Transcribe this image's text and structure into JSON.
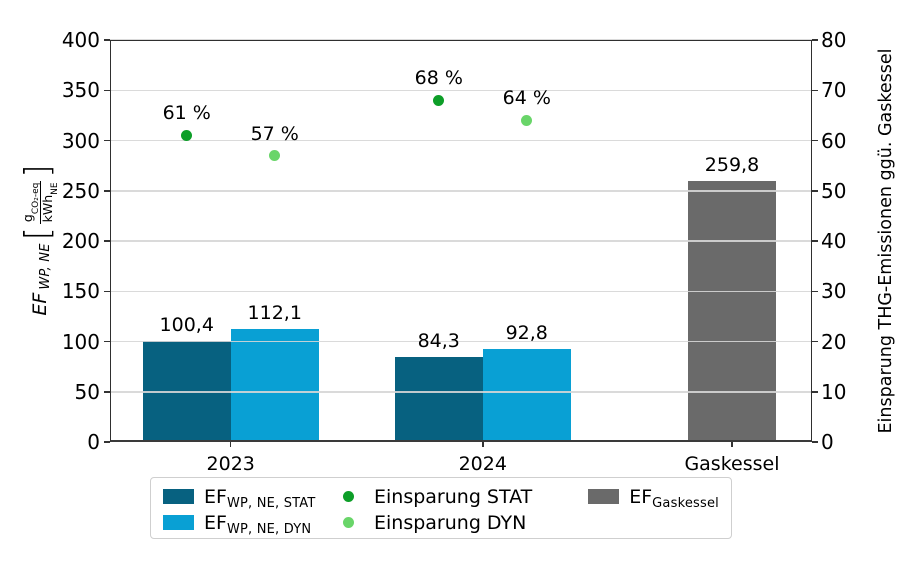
{
  "figure": {
    "left_axis_label": {
      "var": "EF",
      "var_sub": "WP, NE",
      "bracket_open": "[",
      "num": "g",
      "num_sub": "CO₂-eq",
      "den": "kWh",
      "den_sub": "NE",
      "bracket_close": "]"
    },
    "right_axis_label": "Einsparung THG-Emissionen ggü. Gaskessel"
  },
  "chart_data": {
    "type": "bar",
    "categories": [
      "2023",
      "2024",
      "Gaskessel"
    ],
    "left_axis": {
      "min": 0,
      "max": 400,
      "ticks": [
        0,
        50,
        100,
        150,
        200,
        250,
        300,
        350,
        400
      ]
    },
    "right_axis": {
      "min": 0,
      "max": 80,
      "ticks": [
        0,
        10,
        20,
        30,
        40,
        50,
        60,
        70,
        80
      ]
    },
    "grid": "horizontal",
    "legend_position": "bottom",
    "series": [
      {
        "name": "EF WP,NE,STAT",
        "type": "bar",
        "axis": "left",
        "color": "#076180",
        "values": [
          100.4,
          84.3,
          null
        ],
        "value_labels": [
          "100,4",
          "84,3",
          null
        ]
      },
      {
        "name": "EF WP,NE,DYN",
        "type": "bar",
        "axis": "left",
        "color": "#09a0d4",
        "values": [
          112.1,
          92.8,
          null
        ],
        "value_labels": [
          "112,1",
          "92,8",
          null
        ]
      },
      {
        "name": "EF Gaskessel",
        "type": "bar",
        "axis": "left",
        "color": "#6a6a6a",
        "values": [
          null,
          null,
          259.8
        ],
        "value_labels": [
          null,
          null,
          "259,8"
        ]
      },
      {
        "name": "Einsparung STAT",
        "type": "scatter",
        "axis": "right",
        "color": "#0d9e28",
        "values": [
          61,
          68,
          null
        ],
        "value_labels": [
          "61 %",
          "68 %",
          null
        ]
      },
      {
        "name": "Einsparung DYN",
        "type": "scatter",
        "axis": "right",
        "color": "#69d569",
        "values": [
          57,
          64,
          null
        ],
        "value_labels": [
          "57 %",
          "64 %",
          null
        ]
      }
    ]
  },
  "legend": {
    "items": [
      {
        "type": "rect",
        "color": "#076180",
        "main": "EF",
        "sub": "WP, NE, STAT"
      },
      {
        "type": "rect",
        "color": "#09a0d4",
        "main": "EF",
        "sub": "WP, NE, DYN"
      },
      {
        "type": "dot",
        "color": "#0d9e28",
        "main": "Einsparung STAT",
        "sub": ""
      },
      {
        "type": "dot",
        "color": "#69d569",
        "main": "Einsparung DYN",
        "sub": ""
      },
      {
        "type": "rect",
        "color": "#6a6a6a",
        "main": "EF",
        "sub": "Gaskessel"
      }
    ],
    "columns": [
      [
        0,
        1
      ],
      [
        2,
        3
      ],
      [
        4
      ]
    ]
  }
}
